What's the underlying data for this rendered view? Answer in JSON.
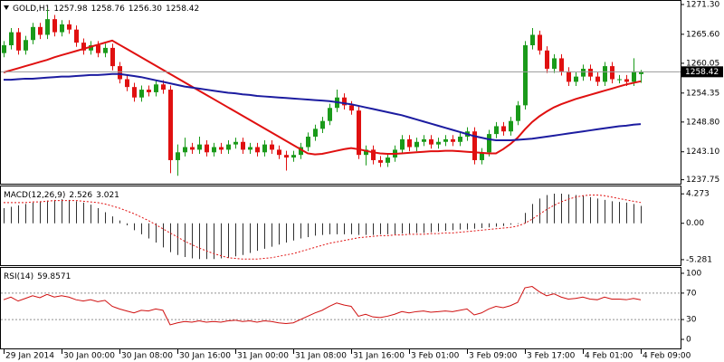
{
  "chart_data": [
    {
      "type": "candlestick",
      "symbol": "GOLD,H1",
      "ohlc_labels": [
        "1257.98",
        "1258.76",
        "1256.30",
        "1258.42"
      ],
      "categories": [
        "29 Jan 2014",
        null,
        null,
        null,
        null,
        null,
        null,
        null,
        "30 Jan 00:00",
        null,
        null,
        null,
        null,
        null,
        null,
        null,
        "30 Jan 08:00",
        null,
        null,
        null,
        null,
        null,
        null,
        null,
        "30 Jan 16:00",
        null,
        null,
        null,
        null,
        null,
        null,
        null,
        "31 Jan 00:00",
        null,
        null,
        null,
        null,
        null,
        null,
        null,
        "31 Jan 08:00",
        null,
        null,
        null,
        null,
        null,
        null,
        null,
        "31 Jan 16:00",
        null,
        null,
        null,
        null,
        null,
        null,
        null,
        "3 Feb 01:00",
        null,
        null,
        null,
        null,
        null,
        null,
        null,
        "3 Feb 09:00",
        null,
        null,
        null,
        null,
        null,
        null,
        null,
        "3 Feb 17:00",
        null,
        null,
        null,
        null,
        null,
        null,
        null,
        "4 Feb 01:00",
        null,
        null,
        null,
        null,
        null,
        null,
        null,
        "4 Feb 09:00"
      ],
      "open": [
        1262.0,
        1263.5,
        1266.0,
        1262.5,
        1264.5,
        1267.0,
        1265.5,
        1268.5,
        1266.0,
        1267.5,
        1266.5,
        1264.0,
        1262.5,
        1263.5,
        1262.0,
        1263.0,
        1259.5,
        1257.0,
        1255.5,
        1253.5,
        1255.0,
        1254.5,
        1256.0,
        1255.0,
        1241.5,
        1243.0,
        1244.0,
        1243.5,
        1244.5,
        1243.0,
        1244.0,
        1243.5,
        1244.5,
        1245.0,
        1243.5,
        1244.0,
        1243.0,
        1244.5,
        1243.5,
        1242.5,
        1242.0,
        1242.5,
        1244.0,
        1246.0,
        1247.5,
        1249.0,
        1251.5,
        1253.5,
        1252.0,
        1251.0,
        1242.5,
        1243.5,
        1241.5,
        1241.0,
        1242.0,
        1243.5,
        1245.5,
        1244.0,
        1245.0,
        1245.5,
        1244.5,
        1245.0,
        1245.5,
        1245.0,
        1246.0,
        1247.0,
        1241.5,
        1243.0,
        1246.5,
        1248.0,
        1247.0,
        1249.0,
        1252.0,
        1263.5,
        1265.5,
        1262.5,
        1259.0,
        1261.0,
        1258.5,
        1256.5,
        1257.5,
        1259.0,
        1257.5,
        1256.5,
        1259.5,
        1257.0,
        1257.0,
        1256.5,
        1257.98
      ],
      "high": [
        1264.3,
        1266.8,
        1266.8,
        1265.3,
        1267.8,
        1267.8,
        1270.5,
        1269.3,
        1268.3,
        1268.3,
        1267.3,
        1264.8,
        1264.3,
        1264.3,
        1263.8,
        1263.8,
        1260.3,
        1257.8,
        1256.3,
        1255.8,
        1255.8,
        1256.8,
        1256.8,
        1255.8,
        1244.5,
        1245.8,
        1244.8,
        1246.0,
        1245.3,
        1244.8,
        1244.8,
        1245.3,
        1245.8,
        1245.8,
        1244.8,
        1244.8,
        1245.3,
        1245.3,
        1244.3,
        1243.3,
        1243.3,
        1244.8,
        1246.8,
        1248.3,
        1249.8,
        1252.3,
        1255.0,
        1254.3,
        1252.8,
        1251.8,
        1244.3,
        1244.3,
        1242.3,
        1242.8,
        1244.3,
        1246.3,
        1246.3,
        1245.8,
        1246.3,
        1246.3,
        1245.8,
        1246.3,
        1246.3,
        1246.8,
        1247.8,
        1247.8,
        1243.8,
        1247.3,
        1248.8,
        1248.8,
        1249.8,
        1252.8,
        1264.3,
        1266.8,
        1266.3,
        1263.3,
        1261.8,
        1261.8,
        1259.3,
        1258.3,
        1259.8,
        1259.8,
        1258.3,
        1260.3,
        1260.3,
        1257.8,
        1257.8,
        1261.0,
        1258.76
      ],
      "low": [
        1261.2,
        1262.7,
        1261.7,
        1261.7,
        1263.7,
        1264.7,
        1264.7,
        1265.2,
        1265.2,
        1265.7,
        1263.2,
        1261.7,
        1261.7,
        1261.2,
        1261.2,
        1258.7,
        1256.2,
        1254.7,
        1252.7,
        1252.7,
        1253.7,
        1253.7,
        1254.2,
        1239.0,
        1238.5,
        1242.2,
        1242.7,
        1242.7,
        1242.2,
        1242.2,
        1242.7,
        1242.7,
        1243.7,
        1242.7,
        1242.7,
        1242.2,
        1242.2,
        1242.7,
        1241.7,
        1239.5,
        1241.2,
        1241.7,
        1243.2,
        1245.2,
        1246.7,
        1248.2,
        1250.7,
        1251.2,
        1250.2,
        1241.7,
        1240.5,
        1240.7,
        1240.2,
        1240.2,
        1241.2,
        1242.7,
        1243.2,
        1243.2,
        1244.2,
        1243.7,
        1243.7,
        1244.2,
        1244.2,
        1244.2,
        1245.2,
        1240.7,
        1240.7,
        1242.2,
        1245.7,
        1246.2,
        1246.2,
        1248.2,
        1251.2,
        1262.7,
        1261.7,
        1258.2,
        1258.2,
        1257.7,
        1255.7,
        1255.7,
        1256.7,
        1256.7,
        1255.7,
        1255.7,
        1256.2,
        1256.2,
        1255.7,
        1255.7,
        1256.3
      ],
      "close": [
        1263.5,
        1266.0,
        1262.5,
        1264.5,
        1267.0,
        1265.5,
        1268.5,
        1266.0,
        1267.5,
        1266.5,
        1264.0,
        1262.5,
        1263.5,
        1262.0,
        1263.0,
        1259.5,
        1257.0,
        1255.5,
        1253.5,
        1255.0,
        1254.5,
        1256.0,
        1255.0,
        1241.5,
        1243.0,
        1244.0,
        1243.5,
        1244.5,
        1243.0,
        1244.0,
        1243.5,
        1244.5,
        1245.0,
        1243.5,
        1244.0,
        1243.0,
        1244.5,
        1243.5,
        1242.5,
        1242.0,
        1242.5,
        1244.0,
        1246.0,
        1247.5,
        1249.0,
        1251.5,
        1253.5,
        1252.0,
        1251.0,
        1242.5,
        1243.5,
        1241.5,
        1241.0,
        1242.0,
        1243.5,
        1245.5,
        1244.0,
        1245.0,
        1245.5,
        1244.5,
        1245.0,
        1245.5,
        1245.0,
        1246.0,
        1247.0,
        1241.5,
        1243.0,
        1246.5,
        1248.0,
        1247.0,
        1249.0,
        1252.0,
        1263.5,
        1265.5,
        1262.5,
        1259.0,
        1261.0,
        1258.5,
        1256.5,
        1257.5,
        1259.0,
        1257.5,
        1256.5,
        1259.5,
        1257.0,
        1257.0,
        1256.5,
        1258.5,
        1258.42
      ],
      "up_color": "#1a9a1a",
      "down_color": "#e01010",
      "series": [
        {
          "color": "#e01010",
          "values": [
            1258.3,
            1258.7,
            1259.1,
            1259.5,
            1259.9,
            1260.3,
            1260.7,
            1261.2,
            1261.6,
            1262.0,
            1262.4,
            1262.8,
            1263.2,
            1263.6,
            1264.0,
            1264.4,
            1263.6,
            1262.8,
            1262.0,
            1261.2,
            1260.4,
            1259.6,
            1258.8,
            1258.0,
            1257.2,
            1256.4,
            1255.6,
            1254.8,
            1254.0,
            1253.2,
            1252.4,
            1251.6,
            1250.8,
            1250.0,
            1249.2,
            1248.4,
            1247.6,
            1246.8,
            1246.0,
            1245.2,
            1244.4,
            1243.6,
            1242.8,
            1242.6,
            1242.7,
            1243.0,
            1243.3,
            1243.6,
            1243.8,
            1243.6,
            1243.3,
            1243.0,
            1242.8,
            1242.7,
            1242.7,
            1242.8,
            1242.9,
            1243.0,
            1243.1,
            1243.2,
            1243.2,
            1243.3,
            1243.3,
            1243.2,
            1243.1,
            1243.0,
            1242.9,
            1242.8,
            1242.8,
            1243.6,
            1244.6,
            1245.8,
            1247.4,
            1248.8,
            1249.9,
            1250.8,
            1251.6,
            1252.2,
            1252.7,
            1253.2,
            1253.6,
            1254.0,
            1254.4,
            1254.8,
            1255.2,
            1255.6,
            1256.0,
            1256.3,
            1256.6
          ]
        },
        {
          "color": "#1c1ca0",
          "values": [
            1256.9,
            1256.9,
            1257.0,
            1257.1,
            1257.1,
            1257.2,
            1257.3,
            1257.4,
            1257.5,
            1257.5,
            1257.6,
            1257.7,
            1257.8,
            1257.8,
            1257.9,
            1258.0,
            1258.0,
            1257.8,
            1257.6,
            1257.4,
            1257.1,
            1256.8,
            1256.5,
            1256.2,
            1255.9,
            1255.6,
            1255.4,
            1255.2,
            1255.0,
            1254.8,
            1254.6,
            1254.4,
            1254.3,
            1254.1,
            1254.0,
            1253.8,
            1253.7,
            1253.6,
            1253.5,
            1253.4,
            1253.3,
            1253.2,
            1253.1,
            1253.0,
            1252.9,
            1252.8,
            1252.6,
            1252.4,
            1252.2,
            1251.9,
            1251.6,
            1251.3,
            1251.0,
            1250.7,
            1250.4,
            1250.1,
            1249.7,
            1249.3,
            1248.9,
            1248.5,
            1248.1,
            1247.7,
            1247.3,
            1246.9,
            1246.5,
            1246.1,
            1245.8,
            1245.5,
            1245.3,
            1245.3,
            1245.3,
            1245.4,
            1245.5,
            1245.6,
            1245.8,
            1246.0,
            1246.2,
            1246.4,
            1246.6,
            1246.8,
            1247.0,
            1247.2,
            1247.4,
            1247.6,
            1247.8,
            1248.0,
            1248.1,
            1248.3,
            1248.4
          ]
        }
      ],
      "ylim": [
        1237.16,
        1271.82
      ],
      "yticks": [
        {
          "value": 1271.3,
          "label": "1271.30"
        },
        {
          "value": 1265.6,
          "label": "1265.60"
        },
        1260.05,
        1254.35,
        {
          "value": 1248.8,
          "label": "1248.80"
        },
        {
          "value": 1243.1,
          "label": "1243.10"
        },
        1237.75
      ]
    },
    {
      "type": "macd",
      "title": "MACD(12,26,9)",
      "histogram": {
        "color": "#303030",
        "values": [
          2.2,
          2.4,
          2.6,
          2.8,
          3.0,
          3.2,
          3.3,
          3.4,
          3.5,
          3.4,
          3.2,
          3.0,
          2.7,
          2.2,
          1.6,
          1.0,
          0.4,
          -0.3,
          -1.0,
          -1.6,
          -2.2,
          -2.8,
          -3.5,
          -4.2,
          -4.6,
          -4.9,
          -5.1,
          -5.2,
          -5.2,
          -5.2,
          -5.1,
          -5.0,
          -4.8,
          -4.6,
          -4.3,
          -4.0,
          -3.7,
          -3.4,
          -3.1,
          -2.8,
          -2.5,
          -2.2,
          -2.0,
          -1.8,
          -1.7,
          -1.6,
          -1.6,
          -1.6,
          -1.6,
          -1.7,
          -1.7,
          -1.7,
          -1.6,
          -1.6,
          -1.6,
          -1.5,
          -1.5,
          -1.4,
          -1.4,
          -1.3,
          -1.2,
          -1.1,
          -1.0,
          -0.9,
          -0.9,
          -0.8,
          -0.7,
          -0.6,
          -0.5,
          -0.4,
          -0.2,
          -0.1,
          1.5,
          2.8,
          3.6,
          4.1,
          4.3,
          4.3,
          4.2,
          4.1,
          4.0,
          3.8,
          3.6,
          3.4,
          3.2,
          3.1,
          3.0,
          2.8,
          2.526
        ]
      },
      "signal": {
        "color": "#e01010",
        "values": [
          3.0,
          3.0,
          3.0,
          3.0,
          3.1,
          3.1,
          3.2,
          3.3,
          3.3,
          3.3,
          3.3,
          3.2,
          3.1,
          3.0,
          2.8,
          2.5,
          2.2,
          1.8,
          1.4,
          0.9,
          0.4,
          -0.2,
          -0.8,
          -1.4,
          -2.0,
          -2.6,
          -3.1,
          -3.6,
          -4.0,
          -4.4,
          -4.7,
          -5.0,
          -5.1,
          -5.2,
          -5.2,
          -5.2,
          -5.1,
          -5.0,
          -4.8,
          -4.6,
          -4.4,
          -4.1,
          -3.8,
          -3.5,
          -3.2,
          -2.9,
          -2.7,
          -2.5,
          -2.3,
          -2.1,
          -2.0,
          -1.9,
          -1.8,
          -1.8,
          -1.7,
          -1.7,
          -1.6,
          -1.6,
          -1.6,
          -1.5,
          -1.5,
          -1.4,
          -1.4,
          -1.3,
          -1.2,
          -1.1,
          -1.0,
          -0.9,
          -0.8,
          -0.7,
          -0.6,
          -0.4,
          0.0,
          0.6,
          1.3,
          2.0,
          2.6,
          3.1,
          3.5,
          3.8,
          4.0,
          4.1,
          4.1,
          4.0,
          3.8,
          3.6,
          3.4,
          3.2,
          3.021
        ]
      },
      "ylim": [
        -5.95,
        5.35
      ],
      "yticks": [
        4.273,
        {
          "value": 0,
          "label": "0.00"
        },
        -5.281
      ]
    },
    {
      "type": "line",
      "title": "RSI(14)",
      "color": "#d01010",
      "values": [
        60,
        64,
        58,
        62,
        66,
        63,
        68,
        64,
        66,
        64,
        60,
        58,
        60,
        57,
        59,
        50,
        46,
        43,
        40,
        44,
        43,
        46,
        44,
        22,
        25,
        27,
        26,
        28,
        26,
        27,
        26,
        28,
        29,
        27,
        28,
        26,
        28,
        27,
        25,
        24,
        25,
        30,
        35,
        40,
        44,
        50,
        55,
        52,
        50,
        35,
        38,
        34,
        33,
        35,
        38,
        42,
        40,
        42,
        43,
        41,
        42,
        43,
        42,
        44,
        46,
        37,
        40,
        46,
        50,
        48,
        51,
        56,
        78,
        80,
        72,
        66,
        69,
        64,
        61,
        62,
        64,
        61,
        60,
        64,
        61,
        61,
        60,
        62,
        59.8571
      ],
      "levels": [
        70,
        30
      ],
      "ylim": [
        -13.7,
        106.8
      ],
      "yticks": [
        100,
        70,
        30,
        0
      ]
    }
  ]
}
